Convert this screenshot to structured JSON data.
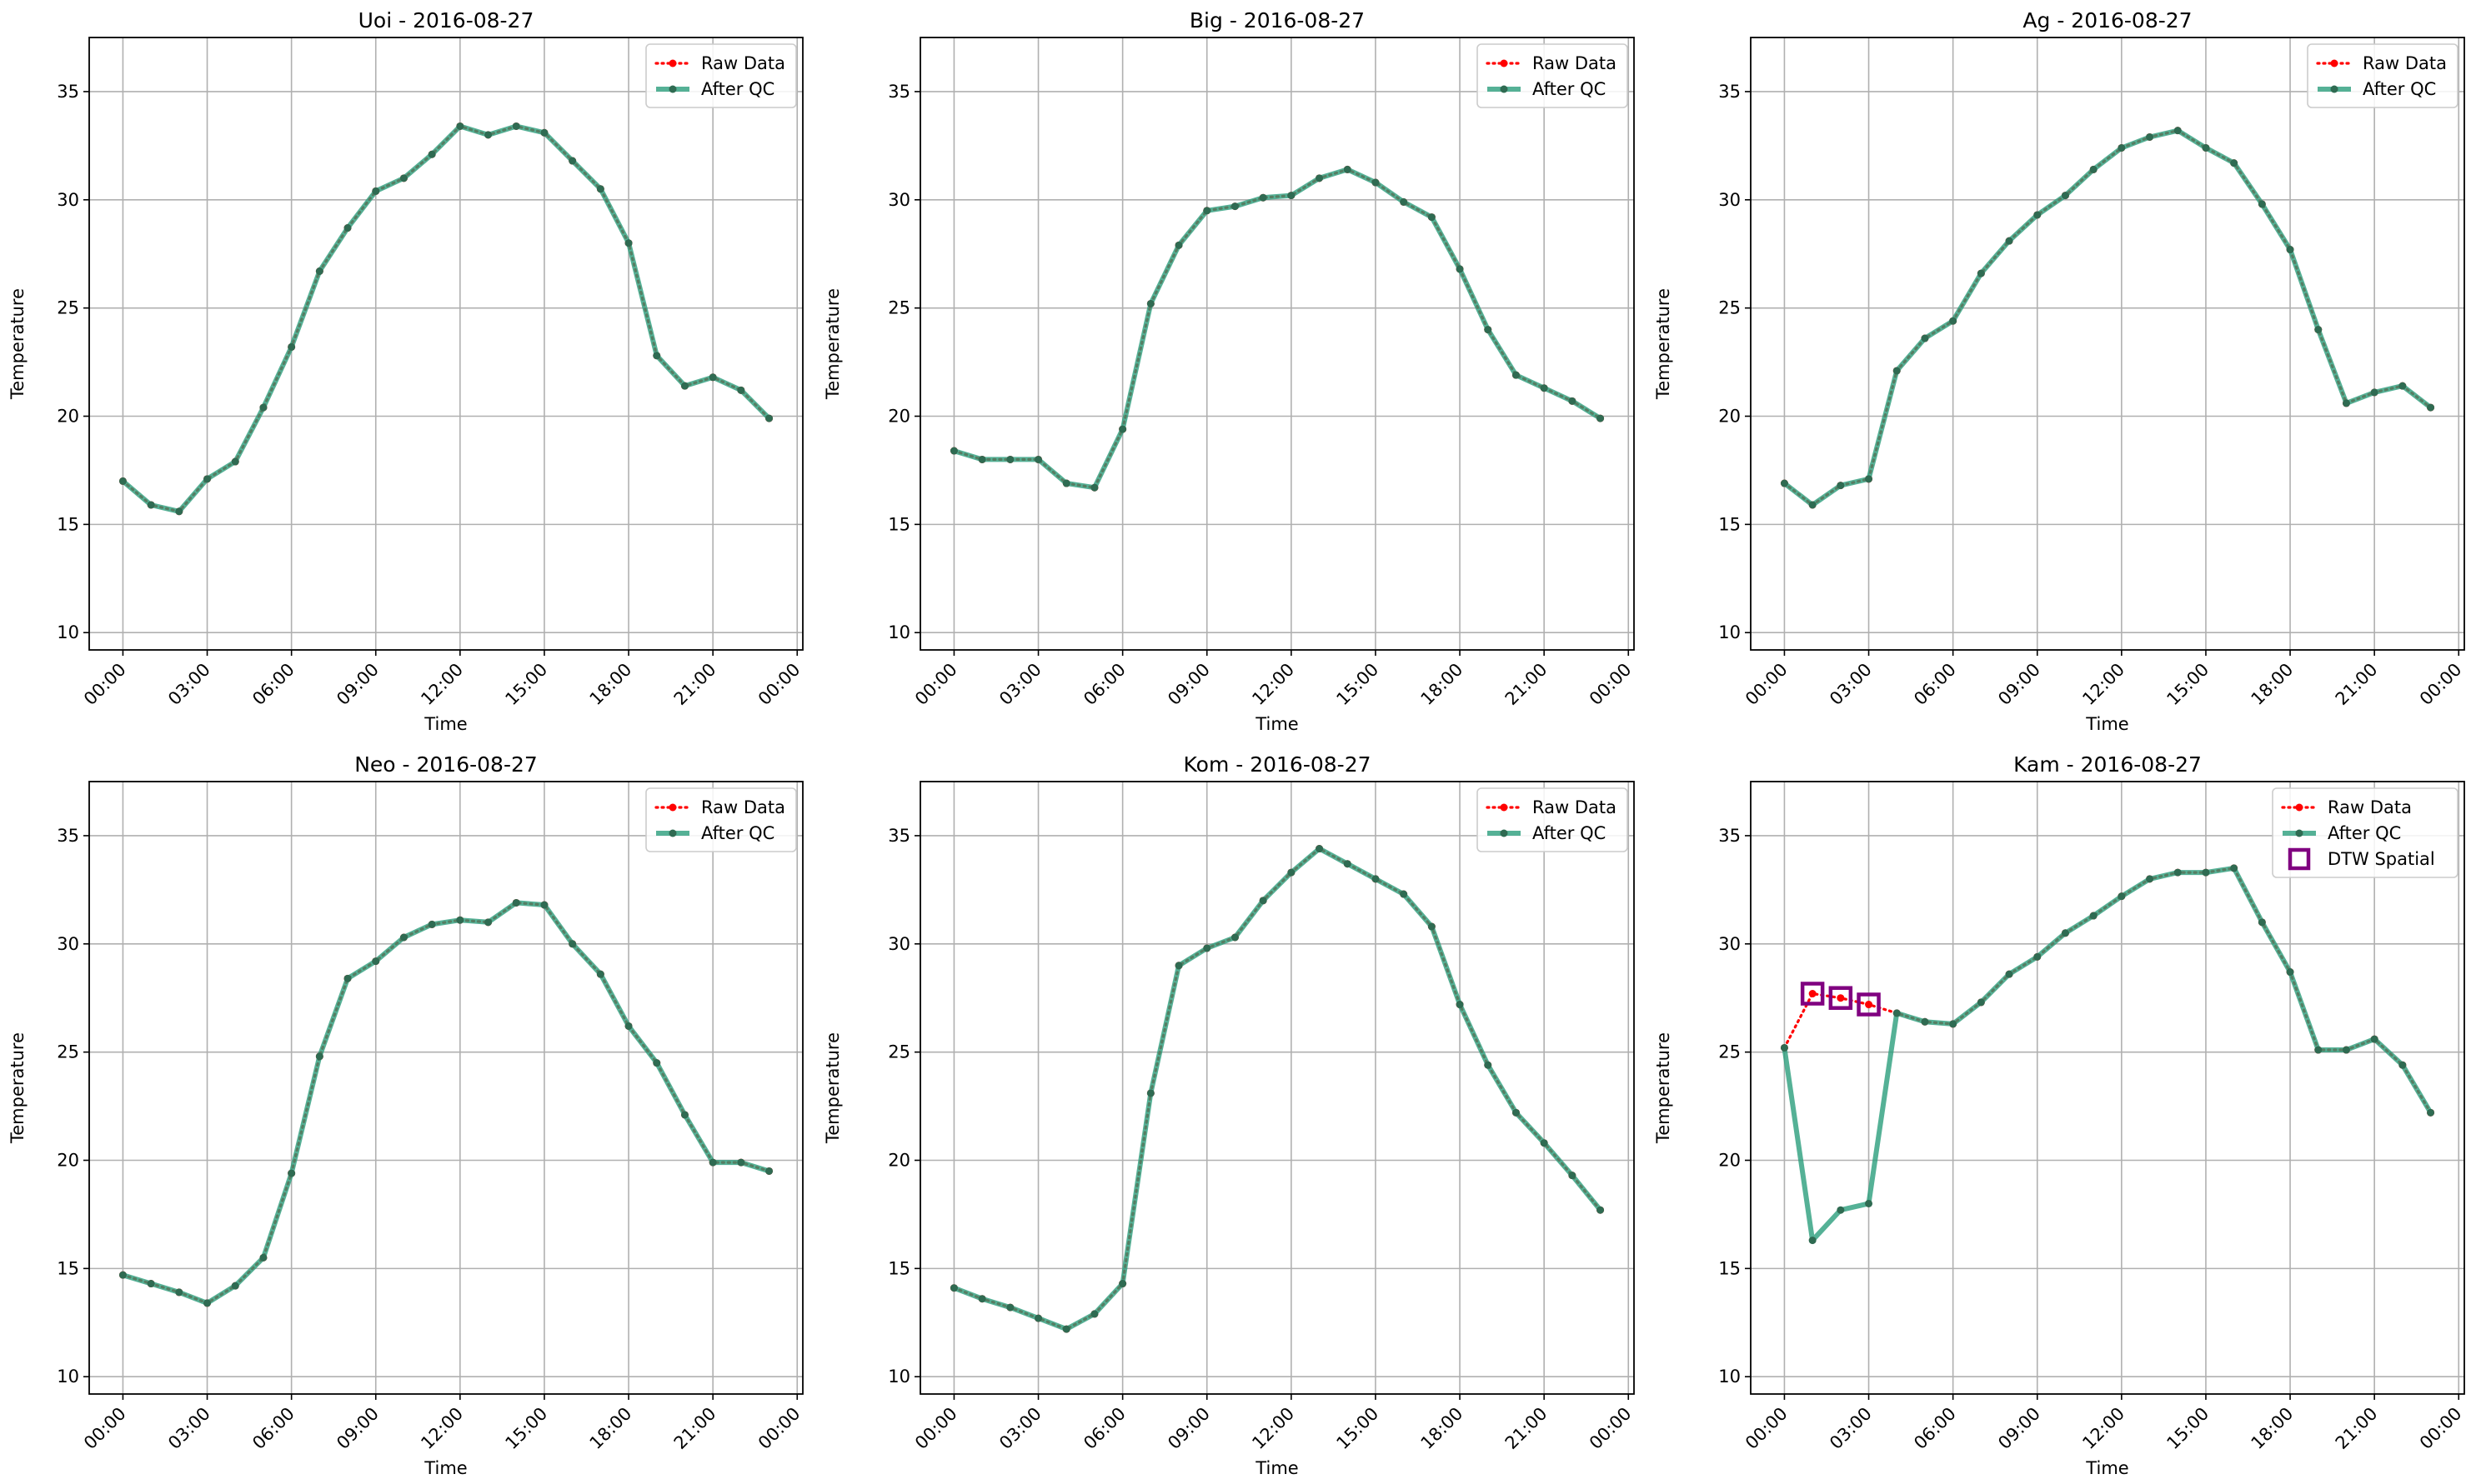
{
  "legend_labels": {
    "raw": "Raw Data",
    "qc": "After QC",
    "dtw": "DTW Spatial"
  },
  "colors": {
    "raw": "#ff0000",
    "qc": "#2a9d7c",
    "qc_marker": "#2f6b52",
    "dtw": "#800080",
    "grid": "#b0b0b0"
  },
  "time_ticks": [
    "00:00",
    "03:00",
    "06:00",
    "09:00",
    "12:00",
    "15:00",
    "18:00",
    "21:00",
    "00:00"
  ],
  "chart_data": [
    {
      "type": "line",
      "title": "Uoi - 2016-08-27",
      "xlabel": "Time",
      "ylabel": "Temperature",
      "xlim": [
        "2016-08-26T22:48",
        "2016-08-28T00:12"
      ],
      "ylim": [
        9.2,
        37.5
      ],
      "yticks": [
        10,
        15,
        20,
        25,
        30,
        35
      ],
      "grid": true,
      "legend": "top-right",
      "x_hours": [
        0,
        1,
        2,
        3,
        4,
        5,
        6,
        7,
        8,
        9,
        10,
        11,
        12,
        13,
        14,
        15,
        16,
        17,
        18,
        19,
        20,
        21,
        22,
        23
      ],
      "series": [
        {
          "name": "Raw Data",
          "values": [
            17.0,
            15.9,
            15.6,
            17.1,
            17.9,
            20.4,
            23.2,
            26.7,
            28.7,
            30.4,
            31.0,
            32.1,
            33.4,
            33.0,
            33.4,
            33.1,
            31.8,
            30.5,
            28.0,
            22.8,
            21.4,
            21.8,
            21.2,
            19.9
          ]
        },
        {
          "name": "After QC",
          "values": [
            17.0,
            15.9,
            15.6,
            17.1,
            17.9,
            20.4,
            23.2,
            26.7,
            28.7,
            30.4,
            31.0,
            32.1,
            33.4,
            33.0,
            33.4,
            33.1,
            31.8,
            30.5,
            28.0,
            22.8,
            21.4,
            21.8,
            21.2,
            19.9
          ]
        }
      ]
    },
    {
      "type": "line",
      "title": "Big - 2016-08-27",
      "xlabel": "Time",
      "ylabel": "Temperature",
      "xlim": [
        "2016-08-26T22:48",
        "2016-08-28T00:12"
      ],
      "ylim": [
        9.2,
        37.5
      ],
      "yticks": [
        10,
        15,
        20,
        25,
        30,
        35
      ],
      "grid": true,
      "legend": "top-right",
      "x_hours": [
        0,
        1,
        2,
        3,
        4,
        5,
        6,
        7,
        8,
        9,
        10,
        11,
        12,
        13,
        14,
        15,
        16,
        17,
        18,
        19,
        20,
        21,
        22,
        23
      ],
      "series": [
        {
          "name": "Raw Data",
          "values": [
            18.4,
            18.0,
            18.0,
            18.0,
            16.9,
            16.7,
            19.4,
            25.2,
            27.9,
            29.5,
            29.7,
            30.1,
            30.2,
            31.0,
            31.4,
            30.8,
            29.9,
            29.2,
            26.8,
            24.0,
            21.9,
            21.3,
            20.7,
            19.9
          ]
        },
        {
          "name": "After QC",
          "values": [
            18.4,
            18.0,
            18.0,
            18.0,
            16.9,
            16.7,
            19.4,
            25.2,
            27.9,
            29.5,
            29.7,
            30.1,
            30.2,
            31.0,
            31.4,
            30.8,
            29.9,
            29.2,
            26.8,
            24.0,
            21.9,
            21.3,
            20.7,
            19.9
          ]
        }
      ]
    },
    {
      "type": "line",
      "title": "Ag - 2016-08-27",
      "xlabel": "Time",
      "ylabel": "Temperature",
      "xlim": [
        "2016-08-26T22:48",
        "2016-08-28T00:12"
      ],
      "ylim": [
        9.2,
        37.5
      ],
      "yticks": [
        10,
        15,
        20,
        25,
        30,
        35
      ],
      "grid": true,
      "legend": "top-right",
      "x_hours": [
        0,
        1,
        2,
        3,
        4,
        5,
        6,
        7,
        8,
        9,
        10,
        11,
        12,
        13,
        14,
        15,
        16,
        17,
        18,
        19,
        20,
        21,
        22,
        23
      ],
      "series": [
        {
          "name": "Raw Data",
          "values": [
            16.9,
            15.9,
            16.8,
            17.1,
            22.1,
            23.6,
            24.4,
            26.6,
            28.1,
            29.3,
            30.2,
            31.4,
            32.4,
            32.9,
            33.2,
            32.4,
            31.7,
            29.8,
            27.7,
            24.0,
            20.6,
            21.1,
            21.4,
            20.4
          ]
        },
        {
          "name": "After QC",
          "values": [
            16.9,
            15.9,
            16.8,
            17.1,
            22.1,
            23.6,
            24.4,
            26.6,
            28.1,
            29.3,
            30.2,
            31.4,
            32.4,
            32.9,
            33.2,
            32.4,
            31.7,
            29.8,
            27.7,
            24.0,
            20.6,
            21.1,
            21.4,
            20.4
          ]
        }
      ]
    },
    {
      "type": "line",
      "title": "Neo - 2016-08-27",
      "xlabel": "Time",
      "ylabel": "Temperature",
      "xlim": [
        "2016-08-26T22:48",
        "2016-08-28T00:12"
      ],
      "ylim": [
        9.2,
        37.5
      ],
      "yticks": [
        10,
        15,
        20,
        25,
        30,
        35
      ],
      "grid": true,
      "legend": "top-right",
      "x_hours": [
        0,
        1,
        2,
        3,
        4,
        5,
        6,
        7,
        8,
        9,
        10,
        11,
        12,
        13,
        14,
        15,
        16,
        17,
        18,
        19,
        20,
        21,
        22,
        23
      ],
      "series": [
        {
          "name": "Raw Data",
          "values": [
            14.7,
            14.3,
            13.9,
            13.4,
            14.2,
            15.5,
            19.4,
            24.8,
            28.4,
            29.2,
            30.3,
            30.9,
            31.1,
            31.0,
            31.9,
            31.8,
            30.0,
            28.6,
            26.2,
            24.5,
            22.1,
            19.9,
            19.9,
            19.5
          ]
        },
        {
          "name": "After QC",
          "values": [
            14.7,
            14.3,
            13.9,
            13.4,
            14.2,
            15.5,
            19.4,
            24.8,
            28.4,
            29.2,
            30.3,
            30.9,
            31.1,
            31.0,
            31.9,
            31.8,
            30.0,
            28.6,
            26.2,
            24.5,
            22.1,
            19.9,
            19.9,
            19.5
          ]
        }
      ]
    },
    {
      "type": "line",
      "title": "Kom - 2016-08-27",
      "xlabel": "Time",
      "ylabel": "Temperature",
      "xlim": [
        "2016-08-26T22:48",
        "2016-08-28T00:12"
      ],
      "ylim": [
        9.2,
        37.5
      ],
      "yticks": [
        10,
        15,
        20,
        25,
        30,
        35
      ],
      "grid": true,
      "legend": "top-right",
      "x_hours": [
        0,
        1,
        2,
        3,
        4,
        5,
        6,
        7,
        8,
        9,
        10,
        11,
        12,
        13,
        14,
        15,
        16,
        17,
        18,
        19,
        20,
        21,
        22,
        23
      ],
      "series": [
        {
          "name": "Raw Data",
          "values": [
            14.1,
            13.6,
            13.2,
            12.7,
            12.2,
            12.9,
            14.3,
            23.1,
            29.0,
            29.8,
            30.3,
            32.0,
            33.3,
            34.4,
            33.7,
            33.0,
            32.3,
            30.8,
            27.2,
            24.4,
            22.2,
            20.8,
            19.3,
            17.7
          ]
        },
        {
          "name": "After QC",
          "values": [
            14.1,
            13.6,
            13.2,
            12.7,
            12.2,
            12.9,
            14.3,
            23.1,
            29.0,
            29.8,
            30.3,
            32.0,
            33.3,
            34.4,
            33.7,
            33.0,
            32.3,
            30.8,
            27.2,
            24.4,
            22.2,
            20.8,
            19.3,
            17.7
          ]
        }
      ]
    },
    {
      "type": "line",
      "title": "Kam - 2016-08-27",
      "xlabel": "Time",
      "ylabel": "Temperature",
      "xlim": [
        "2016-08-26T22:48",
        "2016-08-28T00:12"
      ],
      "ylim": [
        9.2,
        37.5
      ],
      "yticks": [
        10,
        15,
        20,
        25,
        30,
        35
      ],
      "grid": true,
      "legend": "top-right",
      "x_hours": [
        0,
        1,
        2,
        3,
        4,
        5,
        6,
        7,
        8,
        9,
        10,
        11,
        12,
        13,
        14,
        15,
        16,
        17,
        18,
        19,
        20,
        21,
        22,
        23
      ],
      "series": [
        {
          "name": "Raw Data",
          "values": [
            25.2,
            27.7,
            27.5,
            27.2,
            26.8,
            26.4,
            26.3,
            27.3,
            28.6,
            29.4,
            30.5,
            31.3,
            32.2,
            33.0,
            33.3,
            33.3,
            33.5,
            31.0,
            28.7,
            25.1,
            25.1,
            25.6,
            24.4,
            22.2
          ]
        },
        {
          "name": "After QC",
          "values": [
            25.2,
            16.3,
            17.7,
            18.0,
            26.8,
            26.4,
            26.3,
            27.3,
            28.6,
            29.4,
            30.5,
            31.3,
            32.2,
            33.0,
            33.3,
            33.3,
            33.5,
            31.0,
            28.7,
            25.1,
            25.1,
            25.6,
            24.4,
            22.2
          ]
        }
      ],
      "flagged": {
        "name": "DTW Spatial",
        "x_hours": [
          1,
          2,
          3
        ],
        "values": [
          27.7,
          27.5,
          27.2
        ]
      }
    }
  ]
}
